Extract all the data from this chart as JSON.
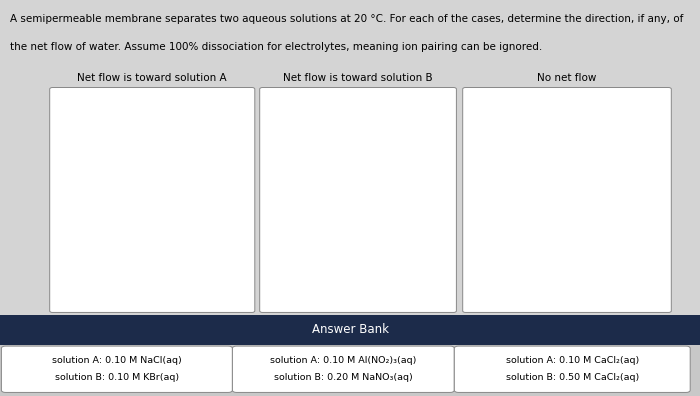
{
  "title_line1": "A semipermeable membrane separates two aqueous solutions at 20 °C. For each of the cases, determine the direction, if any, of",
  "title_line2": "the net flow of water. Assume 100% dissociation for electrolytes, meaning ion pairing can be ignored.",
  "col_headers": [
    "Net flow is toward solution A",
    "Net flow is toward solution B",
    "No net flow"
  ],
  "answer_bank_label": "Answer Bank",
  "answer_bank_bg": "#1c2b4a",
  "answer_bank_text_color": "#ffffff",
  "cards": [
    [
      "solution A: 0.10 M NaCl(aq)",
      "solution B: 0.10 M KBr(aq)"
    ],
    [
      "solution A: 0.10 M Al(NO₂)₃(aq)",
      "solution B: 0.20 M NaNO₃(aq)"
    ],
    [
      "solution A: 0.10 M CaCl₂(aq)",
      "solution B: 0.50 M CaCl₂(aq)"
    ]
  ],
  "background_color": "#d4d4d4",
  "box_bg": "#ffffff",
  "card_bg": "#ffffff",
  "cards_area_bg": "#c8c8c8",
  "text_color": "#000000",
  "header_fontsize": 7.5,
  "body_fontsize": 6.8,
  "title_fontsize": 7.5
}
